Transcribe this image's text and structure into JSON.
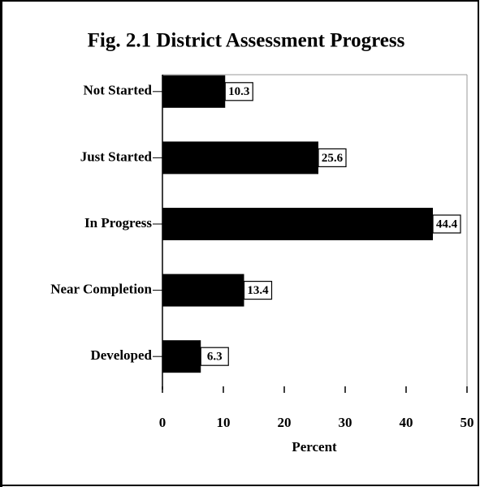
{
  "chart_data": {
    "type": "bar",
    "orientation": "horizontal",
    "title": "Fig. 2.1 District Assessment Progress",
    "categories": [
      "Not Started",
      "Just Started",
      "In Progress",
      "Near Completion",
      "Developed"
    ],
    "values": [
      10.3,
      25.6,
      44.4,
      13.4,
      6.3
    ],
    "color": "#000000",
    "xlabel": "Percent",
    "xlim": [
      0,
      50
    ],
    "xticks": [
      0,
      10,
      20,
      30,
      40,
      50
    ]
  }
}
